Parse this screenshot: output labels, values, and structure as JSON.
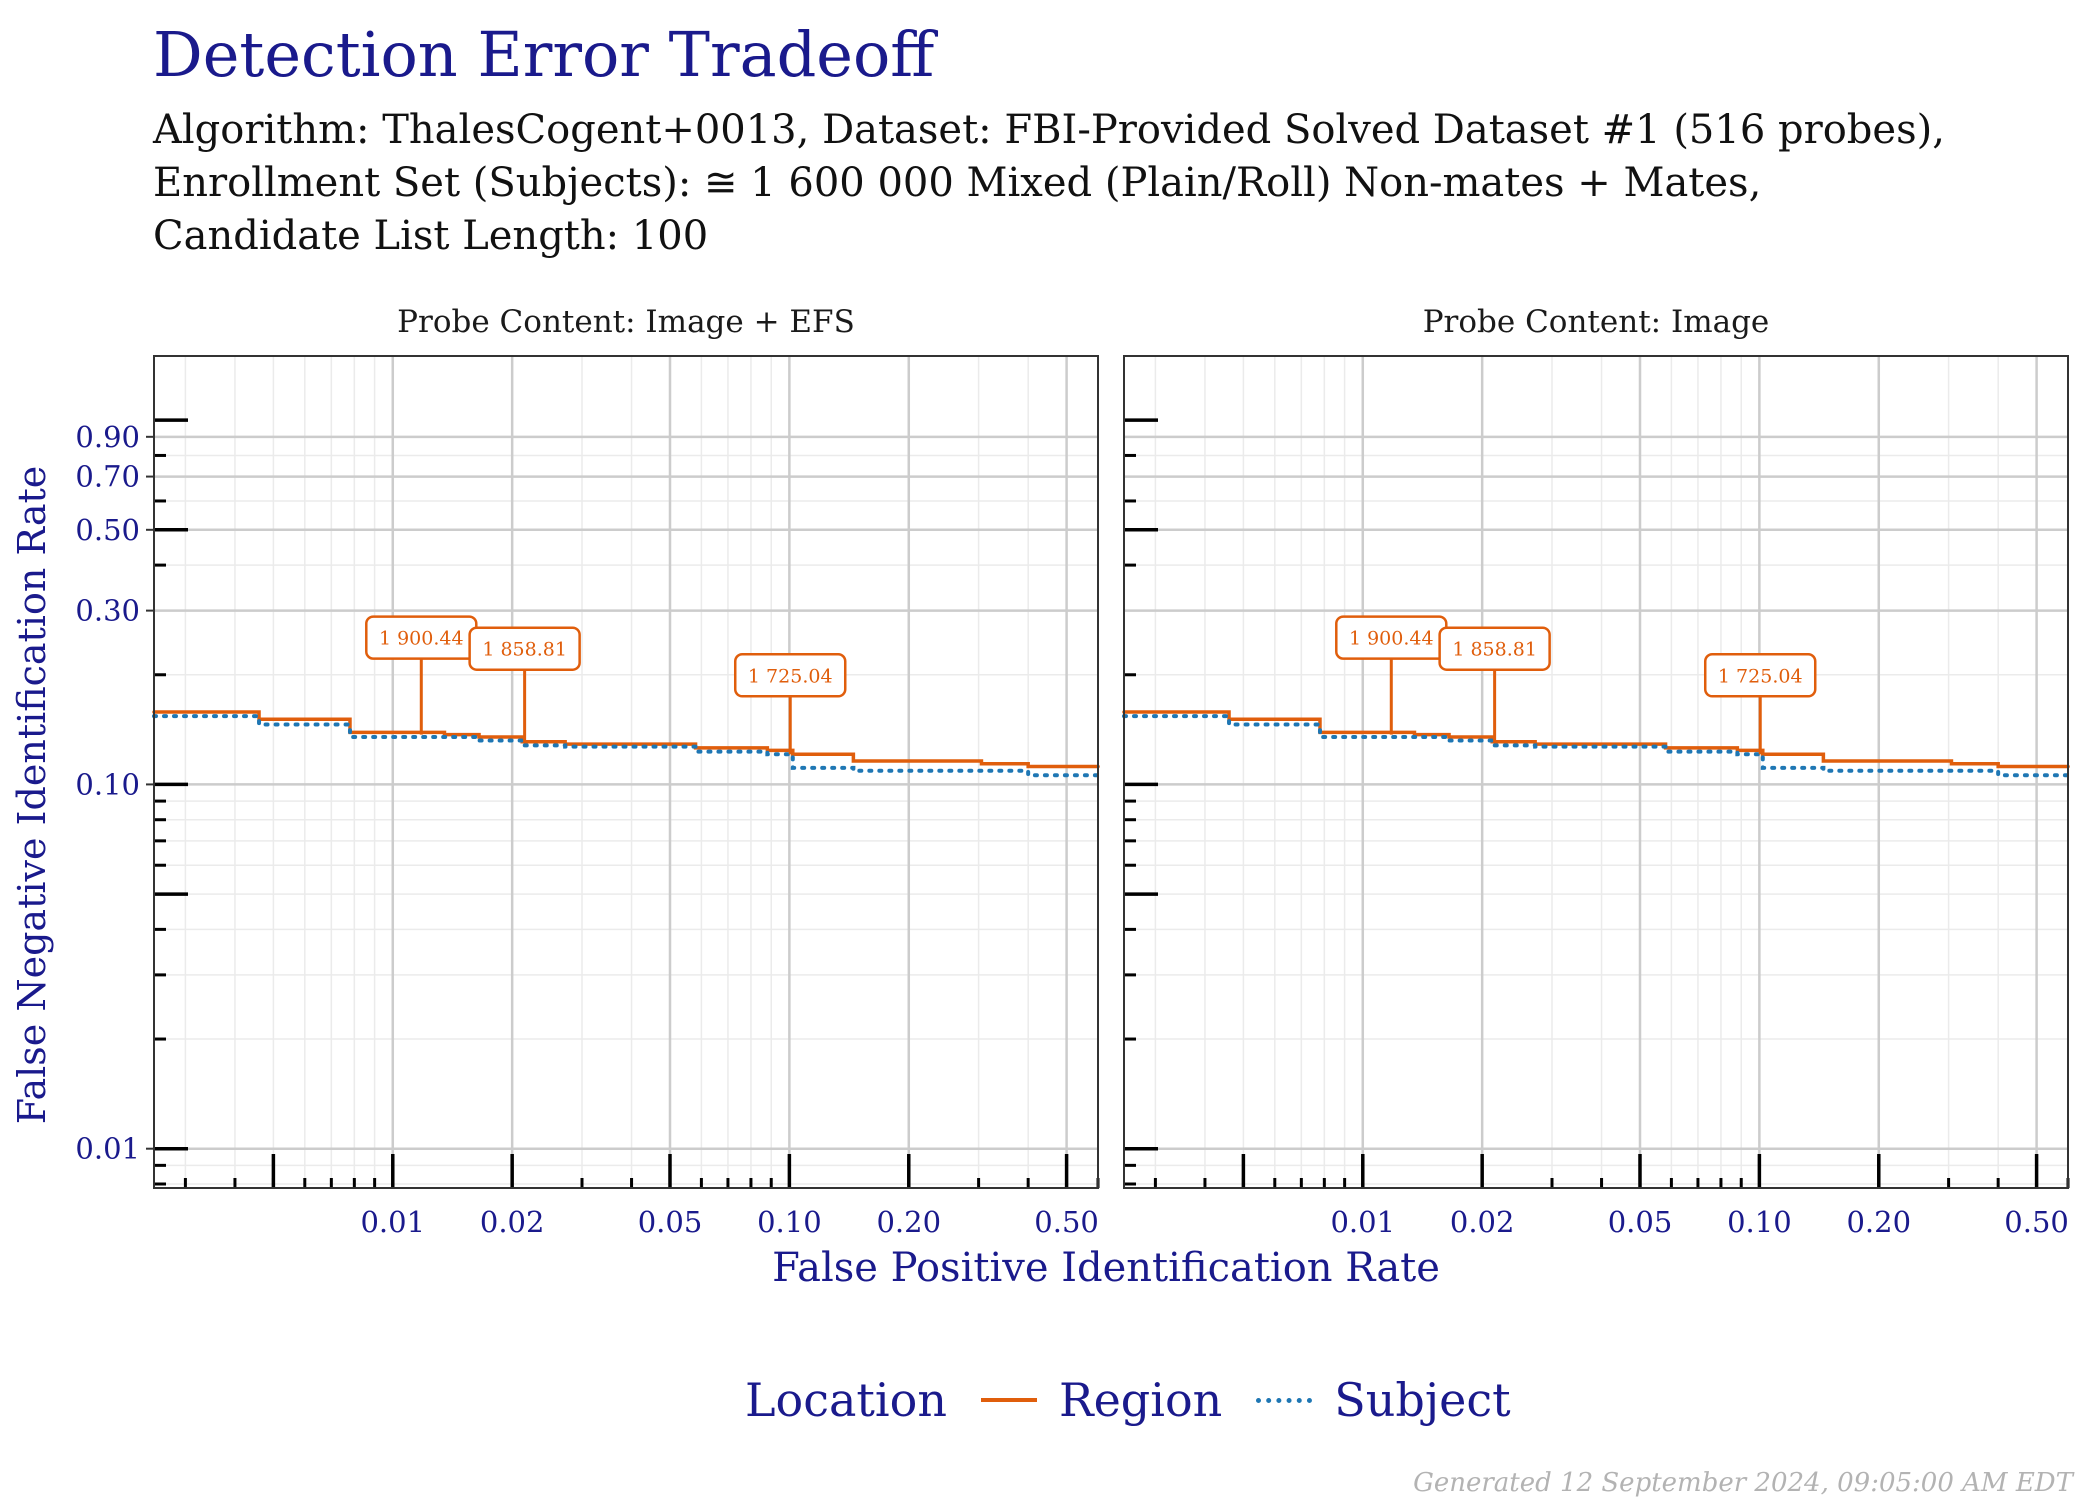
{
  "title": "Detection Error Tradeoff",
  "subtitle_lines": [
    "Algorithm: ThalesCogent+0013, Dataset: FBI-Provided Solved Dataset #1 (516 probes),",
    "Enrollment Set (Subjects): ≅ 1 600 000 Mixed (Plain/Roll) Non-mates + Mates,",
    "Candidate List Length: 100"
  ],
  "footer": "Generated 12 September 2024, 09:05:00 AM EDT",
  "legend": {
    "title": "Location",
    "items": [
      "Region",
      "Subject"
    ]
  },
  "colors": {
    "region": "#e05e0c",
    "subject": "#1f77b4",
    "text": "#1a1a8c"
  },
  "chart_data": {
    "type": "line",
    "xlabel": "False Positive Identification Rate",
    "ylabel": "False Negative Identification Rate",
    "x_scale": "log",
    "y_scale": "log",
    "xlim": [
      0.0025,
      0.6
    ],
    "ylim": [
      0.0078,
      1.5
    ],
    "x_ticks": [
      0.01,
      0.02,
      0.05,
      0.1,
      0.2,
      0.5
    ],
    "x_tick_labels": [
      "0.01",
      "0.02",
      "0.05",
      "0.10",
      "0.20",
      "0.50"
    ],
    "y_ticks": [
      0.01,
      0.1,
      0.3,
      0.5,
      0.7,
      0.9
    ],
    "y_tick_labels": [
      "0.01",
      "0.10",
      "0.30",
      "0.50",
      "0.70",
      "0.90"
    ],
    "grid": true,
    "legend_position": "bottom",
    "panels": [
      {
        "title": "Probe Content: Image + EFS",
        "series": [
          {
            "name": "Region",
            "style": "solid",
            "x": [
              0.0025,
              0.0046,
              0.0078,
              0.0135,
              0.0165,
              0.0212,
              0.0272,
              0.058,
              0.088,
              0.102,
              0.145,
              0.305,
              0.4,
              0.6
            ],
            "y": [
              0.158,
              0.151,
              0.139,
              0.137,
              0.135,
              0.131,
              0.129,
              0.126,
              0.124,
              0.121,
              0.116,
              0.114,
              0.112,
              0.112
            ]
          },
          {
            "name": "Subject",
            "style": "dotted",
            "x": [
              0.0025,
              0.0046,
              0.0078,
              0.0135,
              0.0165,
              0.0212,
              0.0272,
              0.058,
              0.088,
              0.102,
              0.145,
              0.305,
              0.4,
              0.6
            ],
            "y": [
              0.154,
              0.146,
              0.135,
              0.135,
              0.132,
              0.128,
              0.127,
              0.123,
              0.121,
              0.111,
              0.109,
              0.109,
              0.106,
              0.106
            ]
          }
        ],
        "annotations": [
          {
            "label": "1 900.44",
            "x": 0.0118,
            "y": 0.137
          },
          {
            "label": "1 858.81",
            "x": 0.0215,
            "y": 0.131
          },
          {
            "label": "1 725.04",
            "x": 0.1005,
            "y": 0.121
          }
        ]
      },
      {
        "title": "Probe Content: Image",
        "series": [
          {
            "name": "Region",
            "style": "solid",
            "x": [
              0.0025,
              0.0046,
              0.0078,
              0.0135,
              0.0165,
              0.0212,
              0.0272,
              0.058,
              0.088,
              0.102,
              0.145,
              0.305,
              0.4,
              0.6
            ],
            "y": [
              0.158,
              0.151,
              0.139,
              0.137,
              0.135,
              0.131,
              0.129,
              0.126,
              0.124,
              0.121,
              0.116,
              0.114,
              0.112,
              0.112
            ]
          },
          {
            "name": "Subject",
            "style": "dotted",
            "x": [
              0.0025,
              0.0046,
              0.0078,
              0.0135,
              0.0165,
              0.0212,
              0.0272,
              0.058,
              0.088,
              0.102,
              0.145,
              0.305,
              0.4,
              0.6
            ],
            "y": [
              0.154,
              0.146,
              0.135,
              0.135,
              0.132,
              0.128,
              0.127,
              0.123,
              0.121,
              0.111,
              0.109,
              0.109,
              0.106,
              0.106
            ]
          }
        ],
        "annotations": [
          {
            "label": "1 900.44",
            "x": 0.0118,
            "y": 0.137
          },
          {
            "label": "1 858.81",
            "x": 0.0215,
            "y": 0.131
          },
          {
            "label": "1 725.04",
            "x": 0.1005,
            "y": 0.121
          }
        ]
      }
    ]
  }
}
